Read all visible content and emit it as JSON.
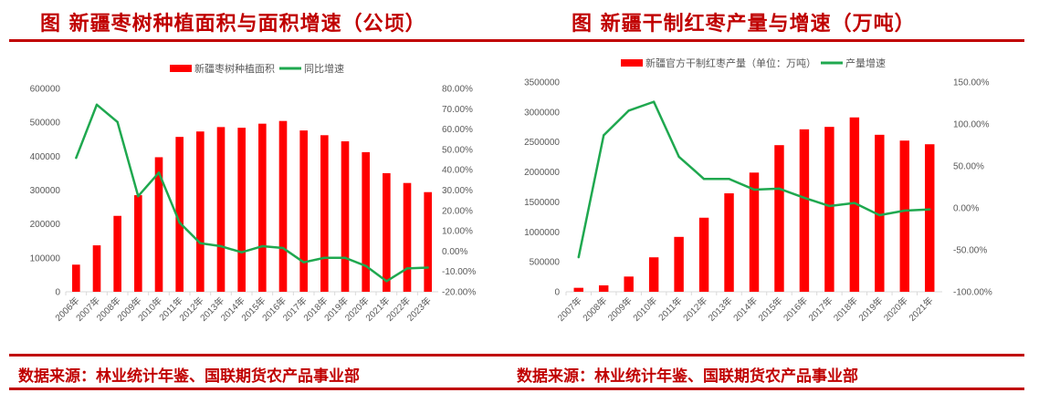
{
  "left": {
    "title": "图  新疆枣树种植面积与面积增速（公顷）",
    "source": "数据来源：林业统计年鉴、国联期货农产品事业部"
  },
  "right": {
    "title": "图  新疆干制红枣产量与增速（万吨）",
    "source": "数据来源：林业统计年鉴、国联期货农产品事业部"
  },
  "colors": {
    "bar": "#ff0000",
    "line": "#1fa84f",
    "accent": "#c00000"
  },
  "chart_data": [
    {
      "type": "bar+line",
      "title": "新疆枣树种植面积与面积增速（公顷）",
      "categories": [
        "2006年",
        "2007年",
        "2008年",
        "2009年",
        "2010年",
        "2011年",
        "2012年",
        "2013年",
        "2014年",
        "2015年",
        "2016年",
        "2017年",
        "2018年",
        "2019年",
        "2020年",
        "2021年",
        "2022年",
        "2023年"
      ],
      "series": [
        {
          "name": "新疆枣树种植面积",
          "type": "bar",
          "axis": "left",
          "values": [
            80000,
            137000,
            224000,
            285000,
            397000,
            457000,
            473000,
            486000,
            484000,
            496000,
            504000,
            476000,
            462000,
            444000,
            412000,
            350000,
            321000,
            294000
          ]
        },
        {
          "name": "同比增速",
          "type": "line",
          "axis": "right",
          "values": [
            45.8,
            72.0,
            63.5,
            27.0,
            38.6,
            14.0,
            3.9,
            2.4,
            -0.6,
            2.4,
            1.5,
            -5.5,
            -3.3,
            -3.3,
            -7.3,
            -14.8,
            -8.5,
            -8.1
          ]
        }
      ],
      "ylim": [
        0,
        600000
      ],
      "yticks": [
        "0",
        "100000",
        "200000",
        "300000",
        "400000",
        "500000",
        "600000"
      ],
      "y2lim": [
        -20,
        80
      ],
      "y2ticks": [
        "-20.00%",
        "-10.00%",
        "0.00%",
        "10.00%",
        "20.00%",
        "30.00%",
        "40.00%",
        "50.00%",
        "60.00%",
        "70.00%",
        "80.00%"
      ],
      "legend": "top"
    },
    {
      "type": "bar+line",
      "title": "新疆干制红枣产量与增速（万吨）",
      "categories": [
        "2007年",
        "2008年",
        "2009年",
        "2010年",
        "2011年",
        "2012年",
        "2013年",
        "2014年",
        "2015年",
        "2016年",
        "2017年",
        "2018年",
        "2019年",
        "2020年",
        "2021年"
      ],
      "series": [
        {
          "name": "新疆官方干制红枣产量（单位：万吨）",
          "type": "bar",
          "axis": "left",
          "values": [
            66000,
            107000,
            254000,
            575000,
            916000,
            1236000,
            1643000,
            1989000,
            2447000,
            2711000,
            2752000,
            2910000,
            2620000,
            2523000,
            2462000
          ]
        },
        {
          "name": "产量增速",
          "type": "line",
          "axis": "right",
          "values": [
            -58.9,
            86.5,
            116.0,
            126.5,
            61.0,
            34.5,
            34.5,
            21.8,
            22.9,
            12.0,
            2.2,
            5.8,
            -8.7,
            -3.3,
            -1.8
          ]
        }
      ],
      "ylim": [
        0,
        3500000
      ],
      "yticks": [
        "0",
        "500000",
        "1000000",
        "1500000",
        "2000000",
        "2500000",
        "3000000",
        "3500000"
      ],
      "y2lim": [
        -100,
        150
      ],
      "y2ticks": [
        "-100.00%",
        "-50.00%",
        "0.00%",
        "50.00%",
        "100.00%",
        "150.00%"
      ],
      "legend": "top"
    }
  ]
}
